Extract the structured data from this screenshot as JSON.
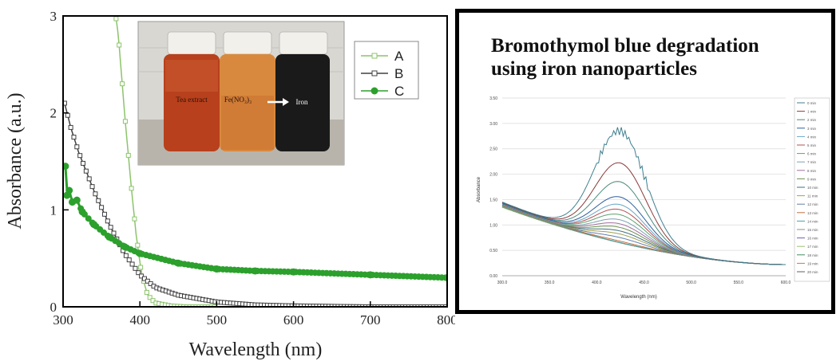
{
  "chart_data": [
    {
      "type": "line",
      "xlabel": "Wavelength (nm)",
      "ylabel": "Absorbance (a.u.)",
      "xlim": [
        300,
        800
      ],
      "ylim": [
        0,
        3
      ],
      "x_ticks": [
        "300",
        "400",
        "500",
        "600",
        "700",
        "800"
      ],
      "y_ticks": [
        "0",
        "1",
        "2",
        "3"
      ],
      "legend": {
        "placement": "top-right",
        "entries": [
          "A",
          "B",
          "C"
        ]
      },
      "series": [
        {
          "name": "A",
          "color": "#8cc46a",
          "marker": "open-square",
          "x": [
            365,
            372,
            380,
            388,
            395,
            402,
            410,
            420,
            440,
            460,
            500
          ],
          "y": [
            3.2,
            2.8,
            2.0,
            1.3,
            0.75,
            0.35,
            0.12,
            0.04,
            0.01,
            0.0,
            0.0
          ]
        },
        {
          "name": "B",
          "color": "#404040",
          "marker": "open-square",
          "x": [
            302,
            310,
            320,
            340,
            360,
            380,
            400,
            420,
            450,
            500,
            550,
            600,
            700,
            800
          ],
          "y": [
            2.1,
            1.85,
            1.6,
            1.2,
            0.85,
            0.55,
            0.33,
            0.2,
            0.12,
            0.05,
            0.02,
            0.01,
            0.0,
            0.0
          ]
        },
        {
          "name": "C",
          "color": "#2ca02c",
          "marker": "filled-circle",
          "x": [
            303,
            305,
            308,
            312,
            318,
            325,
            340,
            360,
            380,
            400,
            450,
            500,
            550,
            600,
            700,
            800
          ],
          "y": [
            1.45,
            1.15,
            1.2,
            1.08,
            1.1,
            0.98,
            0.85,
            0.72,
            0.62,
            0.55,
            0.45,
            0.39,
            0.37,
            0.36,
            0.33,
            0.3
          ]
        }
      ]
    },
    {
      "type": "line",
      "title": "Bromothymol  blue  degradation\nusing iron nanoparticles",
      "xlabel": "Wavelength (nm)",
      "ylabel": "Absorbance",
      "xlim": [
        300,
        600
      ],
      "ylim": [
        0,
        3.5
      ],
      "x_ticks": [
        "300.0",
        "350.0",
        "400.0",
        "450.0",
        "500.0",
        "550.0",
        "600.0"
      ],
      "y_ticks": [
        "0.00",
        "0.50",
        "1.00",
        "1.50",
        "2.00",
        "2.50",
        "3.00",
        "3.50"
      ],
      "legend": {
        "placement": "right",
        "entries": [
          "0 min",
          "1 min",
          "2 min",
          "3 min",
          "4 min",
          "5 min",
          "6 min",
          "7 min",
          "8 min",
          "9 min",
          "10 min",
          "11 min",
          "12 min",
          "13 min",
          "14 min",
          "15 min",
          "16 min",
          "17 min",
          "18 min",
          "19 min",
          "20 min"
        ]
      },
      "peak_wavelength": 425,
      "peak_values": [
        2.85,
        2.22,
        1.85,
        1.55,
        1.4,
        1.3,
        1.2,
        1.1,
        1.02,
        0.95,
        0.88,
        0.82,
        0.75,
        0.68,
        0.62,
        0.56,
        0.5,
        0.44,
        0.38,
        0.32,
        0.27
      ],
      "start_values": [
        1.45,
        1.44,
        1.43,
        1.42,
        1.41,
        1.4,
        1.4,
        1.39,
        1.39,
        1.38,
        1.38,
        1.37,
        1.37,
        1.37,
        1.36,
        1.36,
        1.36,
        1.35,
        1.35,
        1.35,
        1.35
      ],
      "end_value": 0.22
    }
  ],
  "photo": {
    "vial_labels": [
      "Tea extract",
      "Fe(NO₃)₃",
      "Iron"
    ]
  }
}
